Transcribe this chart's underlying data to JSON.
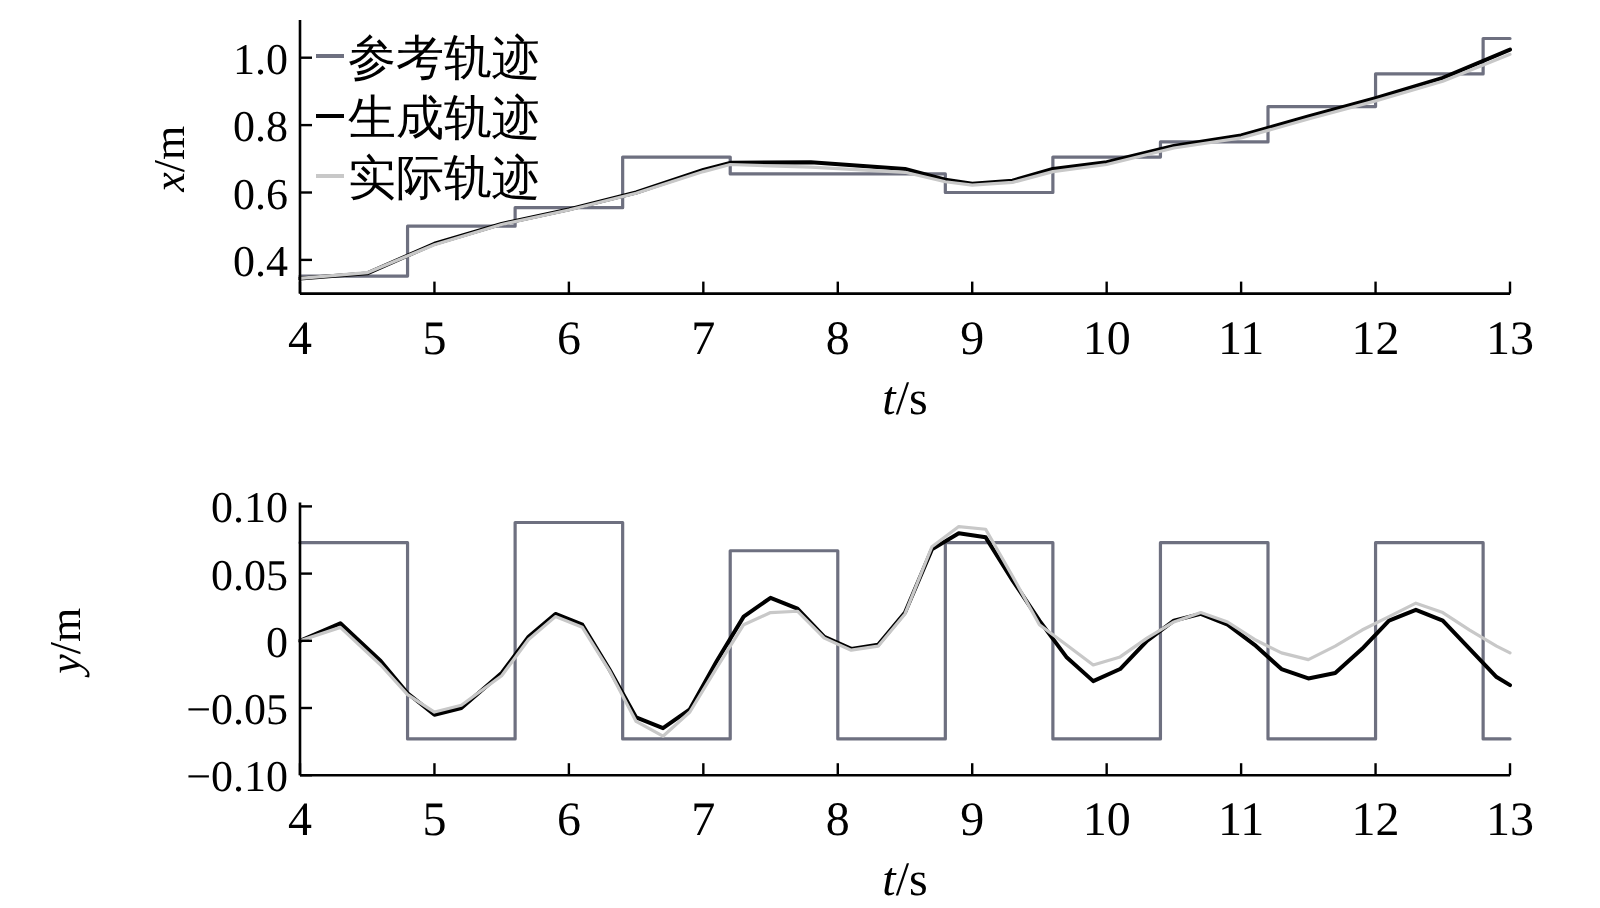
{
  "chart_data": [
    {
      "type": "line",
      "xlabel": "t/s",
      "ylabel": "x/m",
      "xlim": [
        4,
        13
      ],
      "ylim": [
        0.3,
        1.1
      ],
      "xticks": [
        4,
        5,
        6,
        7,
        8,
        9,
        10,
        11,
        12,
        13
      ],
      "yticks": [
        0.4,
        0.6,
        0.8,
        {
          "value": 1,
          "label": "1.0"
        }
      ],
      "grid": false,
      "legend": "top left",
      "series": [
        {
          "name": "参考轨迹",
          "type": "step",
          "color": "#6e7080",
          "x": [
            4,
            4.8,
            5.6,
            6.4,
            7.2,
            8.8,
            9.6,
            10.4,
            11.2,
            12,
            12.8,
            13
          ],
          "values": [
            0.352,
            0.5,
            0.555,
            0.705,
            0.655,
            0.6,
            0.705,
            0.75,
            0.855,
            0.952,
            1.057,
            1.057
          ]
        },
        {
          "name": "生成轨迹",
          "color": "#000000",
          "x": [
            4,
            4.5,
            5,
            5.5,
            6,
            6.5,
            7,
            7.2,
            7.8,
            8.5,
            8.8,
            9,
            9.3,
            9.6,
            10,
            10.5,
            11,
            11.5,
            12,
            12.5,
            13
          ],
          "values": [
            0.345,
            0.36,
            0.448,
            0.507,
            0.55,
            0.6,
            0.667,
            0.688,
            0.69,
            0.67,
            0.638,
            0.626,
            0.635,
            0.67,
            0.69,
            0.738,
            0.769,
            0.826,
            0.88,
            0.94,
            1.024
          ]
        },
        {
          "name": "实际轨迹",
          "color": "#c8c8c8",
          "x": [
            4,
            4.5,
            5,
            5.5,
            6,
            6.5,
            7,
            7.2,
            7.8,
            8.5,
            8.8,
            9,
            9.3,
            9.6,
            10,
            10.5,
            11,
            11.5,
            12,
            12.5,
            13
          ],
          "values": [
            0.345,
            0.362,
            0.445,
            0.505,
            0.548,
            0.598,
            0.662,
            0.683,
            0.675,
            0.66,
            0.632,
            0.622,
            0.63,
            0.662,
            0.683,
            0.732,
            0.762,
            0.818,
            0.872,
            0.93,
            1.01
          ]
        }
      ]
    },
    {
      "type": "line",
      "xlabel": "t/s",
      "ylabel": "y/m",
      "xlim": [
        4,
        13
      ],
      "ylim": [
        -0.1,
        0.1
      ],
      "xticks": [
        4,
        5,
        6,
        7,
        8,
        9,
        10,
        11,
        12,
        13
      ],
      "yticks": [
        {
          "value": -0.1,
          "label": "−0.10"
        },
        {
          "value": -0.05,
          "label": "−0.05"
        },
        0,
        {
          "value": 0.05,
          "label": "0.05"
        },
        {
          "value": 0.1,
          "label": "0.10"
        }
      ],
      "grid": false,
      "series": [
        {
          "type": "step",
          "color": "#6e7080",
          "x": [
            4,
            4.8,
            5.6,
            6.4,
            7.2,
            8,
            8.8,
            9.6,
            10.4,
            11.2,
            12,
            12.8,
            13
          ],
          "values": [
            0.073,
            -0.073,
            0.088,
            -0.073,
            0.067,
            -0.073,
            0.073,
            -0.073,
            0.073,
            -0.073,
            0.073,
            -0.073,
            -0.073
          ]
        },
        {
          "color": "#000000",
          "x": [
            4,
            4.3,
            4.6,
            4.8,
            5,
            5.2,
            5.5,
            5.7,
            5.9,
            6.1,
            6.3,
            6.5,
            6.7,
            6.9,
            7.1,
            7.3,
            7.5,
            7.7,
            7.9,
            8.1,
            8.3,
            8.5,
            8.7,
            8.9,
            9.1,
            9.3,
            9.5,
            9.7,
            9.9,
            10.1,
            10.3,
            10.5,
            10.7,
            10.9,
            11.1,
            11.3,
            11.5,
            11.7,
            11.9,
            12.1,
            12.3,
            12.5,
            12.7,
            12.9,
            13
          ],
          "values": [
            0,
            0.013,
            -0.015,
            -0.039,
            -0.055,
            -0.05,
            -0.024,
            0.003,
            0.02,
            0.012,
            -0.021,
            -0.057,
            -0.065,
            -0.051,
            -0.015,
            0.018,
            0.032,
            0.024,
            0.003,
            -0.006,
            -0.003,
            0.021,
            0.068,
            0.08,
            0.077,
            0.045,
            0.015,
            -0.012,
            -0.03,
            -0.021,
            0,
            0.015,
            0.02,
            0.012,
            -0.003,
            -0.021,
            -0.028,
            -0.024,
            -0.006,
            0.015,
            0.023,
            0.015,
            -0.006,
            -0.027,
            -0.033
          ]
        },
        {
          "color": "#c8c8c8",
          "x": [
            4,
            4.3,
            4.6,
            4.8,
            5,
            5.2,
            5.5,
            5.7,
            5.9,
            6.1,
            6.3,
            6.5,
            6.7,
            6.9,
            7.1,
            7.3,
            7.5,
            7.7,
            7.9,
            8.1,
            8.3,
            8.5,
            8.7,
            8.9,
            9.1,
            9.3,
            9.5,
            9.7,
            9.9,
            10.1,
            10.3,
            10.5,
            10.7,
            10.9,
            11.1,
            11.3,
            11.5,
            11.7,
            11.9,
            12.1,
            12.3,
            12.5,
            12.7,
            12.9,
            13
          ],
          "values": [
            0,
            0.01,
            -0.018,
            -0.04,
            -0.053,
            -0.048,
            -0.026,
            0.001,
            0.018,
            0.01,
            -0.022,
            -0.06,
            -0.071,
            -0.053,
            -0.02,
            0.012,
            0.021,
            0.022,
            0.002,
            -0.007,
            -0.004,
            0.02,
            0.07,
            0.085,
            0.083,
            0.048,
            0.012,
            -0.003,
            -0.018,
            -0.012,
            0.002,
            0.014,
            0.021,
            0.014,
            0.001,
            -0.009,
            -0.014,
            -0.004,
            0.008,
            0.018,
            0.028,
            0.021,
            0.008,
            -0.004,
            -0.009
          ]
        }
      ]
    }
  ]
}
